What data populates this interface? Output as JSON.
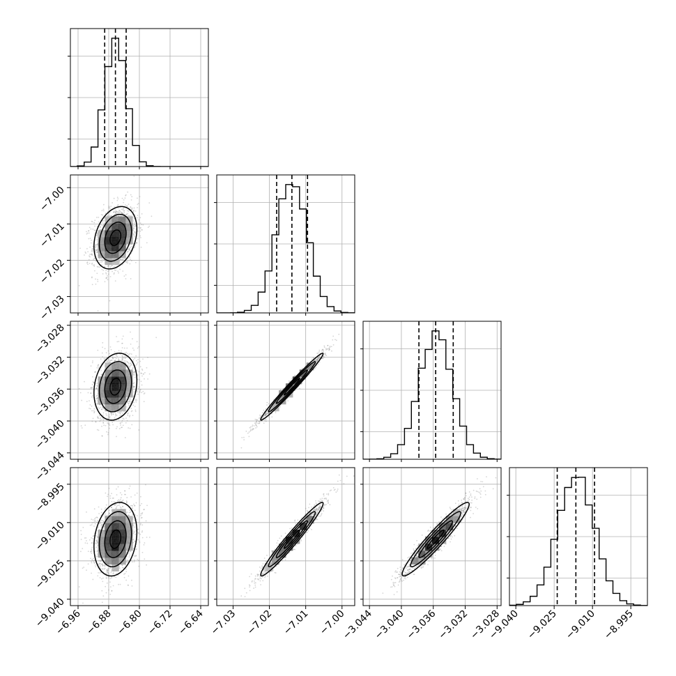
{
  "chart_data": {
    "type": "corner-plot",
    "title": "",
    "parameters": [
      {
        "label": "",
        "range": [
          -6.98,
          -6.62
        ],
        "ticks": [
          -6.96,
          -6.88,
          -6.8,
          -6.72,
          -6.64
        ],
        "tick_labels": [
          "−6.96",
          "−6.88",
          "−6.80",
          "−6.72",
          "−6.64"
        ],
        "quantiles": [
          -6.8905,
          -6.8625,
          -6.8345
        ],
        "mean": -6.8625,
        "sd": 0.028,
        "hist_ticks": [
          0.8,
          0.5,
          0.2
        ]
      },
      {
        "label": "",
        "range": [
          -7.0345,
          -6.9965
        ],
        "ticks": [
          -7.03,
          -7.02,
          -7.01,
          -7.0
        ],
        "tick_labels": [
          "−7.03",
          "−7.02",
          "−7.01",
          "−7.00"
        ],
        "quantiles": [
          -7.018,
          -7.0138,
          -7.0095
        ],
        "mean": -7.0138,
        "sd": 0.0043,
        "hist_ticks": [
          0.8,
          0.5,
          0.2
        ]
      },
      {
        "label": "",
        "range": [
          -3.0448,
          -3.0275
        ],
        "ticks": [
          -3.044,
          -3.04,
          -3.036,
          -3.032,
          -3.028
        ],
        "tick_labels": [
          "−3.044",
          "−3.040",
          "−3.036",
          "−3.032",
          "−3.028"
        ],
        "quantiles": [
          -3.0378,
          -3.0357,
          -3.0335
        ],
        "mean": -3.0357,
        "sd": 0.0021,
        "hist_ticks": [
          0.8,
          0.5,
          0.2
        ]
      },
      {
        "label": "",
        "range": [
          -9.0425,
          -8.9885
        ],
        "ticks": [
          -9.04,
          -9.025,
          -9.01,
          -8.995
        ],
        "tick_labels": [
          "−9.040",
          "−9.025",
          "−9.010",
          "−8.995"
        ],
        "quantiles": [
          -9.0238,
          -9.0165,
          -9.0092
        ],
        "mean": -9.0165,
        "sd": 0.0072,
        "hist_ticks": [
          0.8,
          0.5,
          0.2
        ]
      }
    ],
    "correlations": [
      [
        0,
        1,
        0.28
      ],
      [
        0,
        2,
        0.18
      ],
      [
        0,
        3,
        0.2
      ],
      [
        1,
        2,
        0.985
      ],
      [
        1,
        3,
        0.97
      ],
      [
        2,
        3,
        0.95
      ]
    ],
    "contour_levels_sigma": [
      0.5,
      1.0,
      1.5,
      2.0
    ],
    "grid": true,
    "colors": {
      "scatter": "#888888",
      "density_dark": "#000000",
      "lines": "#000000",
      "grid": "#b0b0b0"
    }
  }
}
